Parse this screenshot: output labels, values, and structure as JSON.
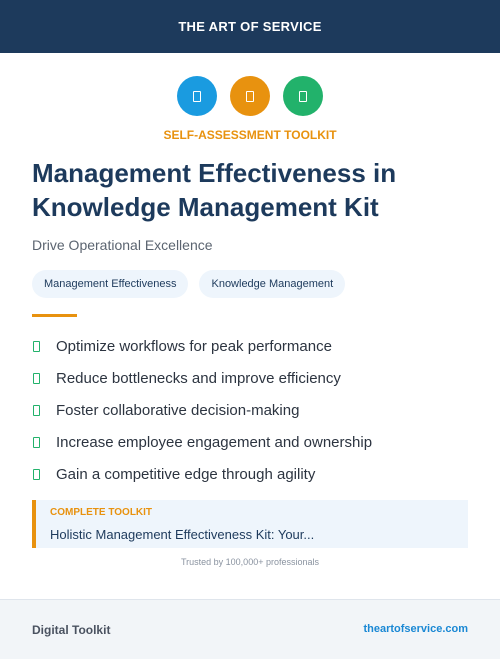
{
  "header": {
    "brand": "THE ART OF SERVICE"
  },
  "icons": [
    {
      "name": "book-icon",
      "color": "#1a9be0"
    },
    {
      "name": "clipboard-icon",
      "color": "#e8920f"
    },
    {
      "name": "document-icon",
      "color": "#22b26b"
    }
  ],
  "kicker": "SELF-ASSESSMENT TOOLKIT",
  "title": "Management Effectiveness in Knowledge Management Kit",
  "subtitle": "Drive Operational Excellence",
  "tags": [
    "Management Effectiveness",
    "Knowledge Management"
  ],
  "features": [
    "Optimize workflows for peak performance",
    "Reduce bottlenecks and improve efficiency",
    "Foster collaborative decision-making",
    "Increase employee engagement and ownership",
    "Gain a competitive edge through agility"
  ],
  "toolkit": {
    "label": "COMPLETE TOOLKIT",
    "text": "Holistic Management Effectiveness Kit: Your..."
  },
  "trusted": "Trusted by 100,000+ professionals",
  "footer": {
    "left": "Digital Toolkit",
    "right": "theartofservice.com"
  },
  "colors": {
    "navy": "#1d3a5c",
    "orange": "#e8920f",
    "green": "#22b26b",
    "blue": "#1a9be0",
    "link": "#1a88d4"
  }
}
